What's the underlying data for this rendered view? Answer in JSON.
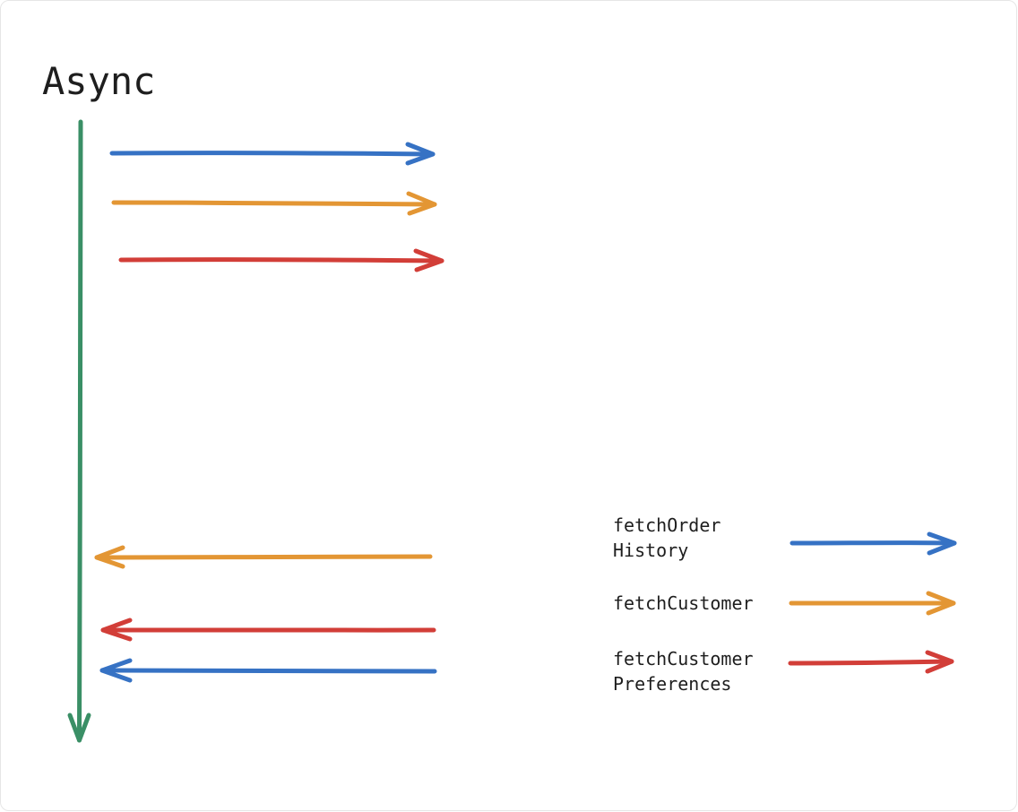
{
  "title": "Async",
  "colors": {
    "timeline": "#3a8f66",
    "blue": "#3672c4",
    "orange": "#e39634",
    "red": "#d23e38",
    "text": "#1e1e1e"
  },
  "legend": [
    {
      "lines": [
        "fetchOrder",
        "History"
      ],
      "color": "#3672c4",
      "icon": "arrow-right-icon"
    },
    {
      "lines": [
        "fetchCustomer"
      ],
      "color": "#e39634",
      "icon": "arrow-right-icon"
    },
    {
      "lines": [
        "fetchCustomer",
        "Preferences"
      ],
      "color": "#d23e38",
      "icon": "arrow-right-icon"
    }
  ]
}
